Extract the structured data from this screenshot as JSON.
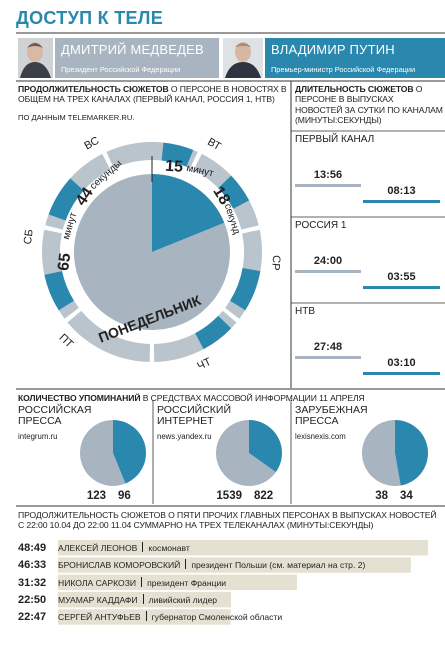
{
  "title": "ДОСТУП К ТЕЛЕ",
  "persons": [
    {
      "name": "ДМИТРИЙ МЕДВЕДЕВ",
      "role": "Президент Российской Федерации",
      "color": "#a8b4c0"
    },
    {
      "name": "ВЛАДИМИР ПУТИН",
      "role": "Премьер-министр Российской Федерации",
      "color": "#2a87ad"
    }
  ],
  "weekly": {
    "heading_bold": "ПРОДОЛЖИТЕЛЬНОСТЬ СЮЖЕТОВ",
    "heading": "О ПЕРСОНЕ В НОВОСТЯХ В ОБЩЕМ НА ТРЕХ КАНАЛАХ (ПЕРВЫЙ КАНАЛ, РОССИЯ 1, НТВ)",
    "source": "ПО ДАННЫМ TELEMARKER.RU.",
    "days": [
      "ВС",
      "ВТ",
      "СР",
      "ЧТ",
      "ПТ",
      "СБ"
    ],
    "current_day": "ПОНЕДЕЛЬНИК",
    "totals": [
      {
        "minutes": 65,
        "minutes_unit": "минут",
        "seconds": 44,
        "seconds_unit": "секунды"
      },
      {
        "minutes": 15,
        "minutes_unit": "минут",
        "seconds": 18,
        "seconds_unit": "секунд"
      }
    ]
  },
  "daily": {
    "heading_bold": "ДЛИТЕЛЬНОСТЬ СЮЖЕТОВ",
    "heading": "О ПЕРСОНЕ В ВЫПУСКАХ НОВОСТЕЙ ЗА СУТКИ ПО КАНАЛАМ (МИНУТЫ:СЕКУНДЫ)",
    "channels": [
      {
        "name": "ПЕРВЫЙ КАНАЛ",
        "times": [
          "13:56",
          "08:13"
        ]
      },
      {
        "name": "РОССИЯ 1",
        "times": [
          "24:00",
          "03:55"
        ]
      },
      {
        "name": "НТВ",
        "times": [
          "27:48",
          "03:10"
        ]
      }
    ]
  },
  "mentions": {
    "heading_bold": "КОЛИЧЕСТВО УПОМИНАНИЙ",
    "heading": "В СРЕДСТВАХ МАССОВОЙ ИНФОРМАЦИИ 11 АПРЕЛЯ",
    "sources": [
      {
        "name": "РОССИЙСКАЯ ПРЕССА",
        "url": "integrum.ru",
        "values": [
          123,
          96
        ]
      },
      {
        "name": "РОССИЙСКИЙ ИНТЕРНЕТ",
        "url": "news.yandex.ru",
        "values": [
          1539,
          822
        ]
      },
      {
        "name": "ЗАРУБЕЖНАЯ ПРЕССА",
        "url": "lexisnexis.com",
        "values": [
          38,
          34
        ]
      }
    ]
  },
  "others": {
    "heading": "ПРОДОЛЖИТЕЛЬНОСТЬ СЮЖЕТОВ О ПЯТИ ПРОЧИХ ГЛАВНЫХ ПЕРСОНАХ В ВЫПУСКАХ НОВОСТЕЙ С 22:00 10.04 ДО 22:00 11.04 СУММАРНО НА ТРЕХ ТЕЛЕКАНАЛАХ (МИНУТЫ:СЕКУНДЫ)",
    "values": [
      48.82,
      46.55,
      31.53,
      22.83,
      22.78
    ],
    "value_labels": [
      "48:49",
      "46:33",
      "31:32",
      "22:50",
      "22:47"
    ],
    "names": [
      "АЛЕКСЕЙ ЛЕОНОВ",
      "БРОНИСЛАВ КОМОРОВСКИЙ",
      "НИКОЛА САРКОЗИ",
      "МУАМАР КАДДАФИ",
      "СЕРГЕЙ АНТУФЬЕВ"
    ],
    "roles": [
      "космонавт",
      "президент Польши (см. материал на стр. 2)",
      "президент Франции",
      "ливийский лидер",
      "губернатор Смоленской области"
    ],
    "color": "#e5e1d2"
  }
}
